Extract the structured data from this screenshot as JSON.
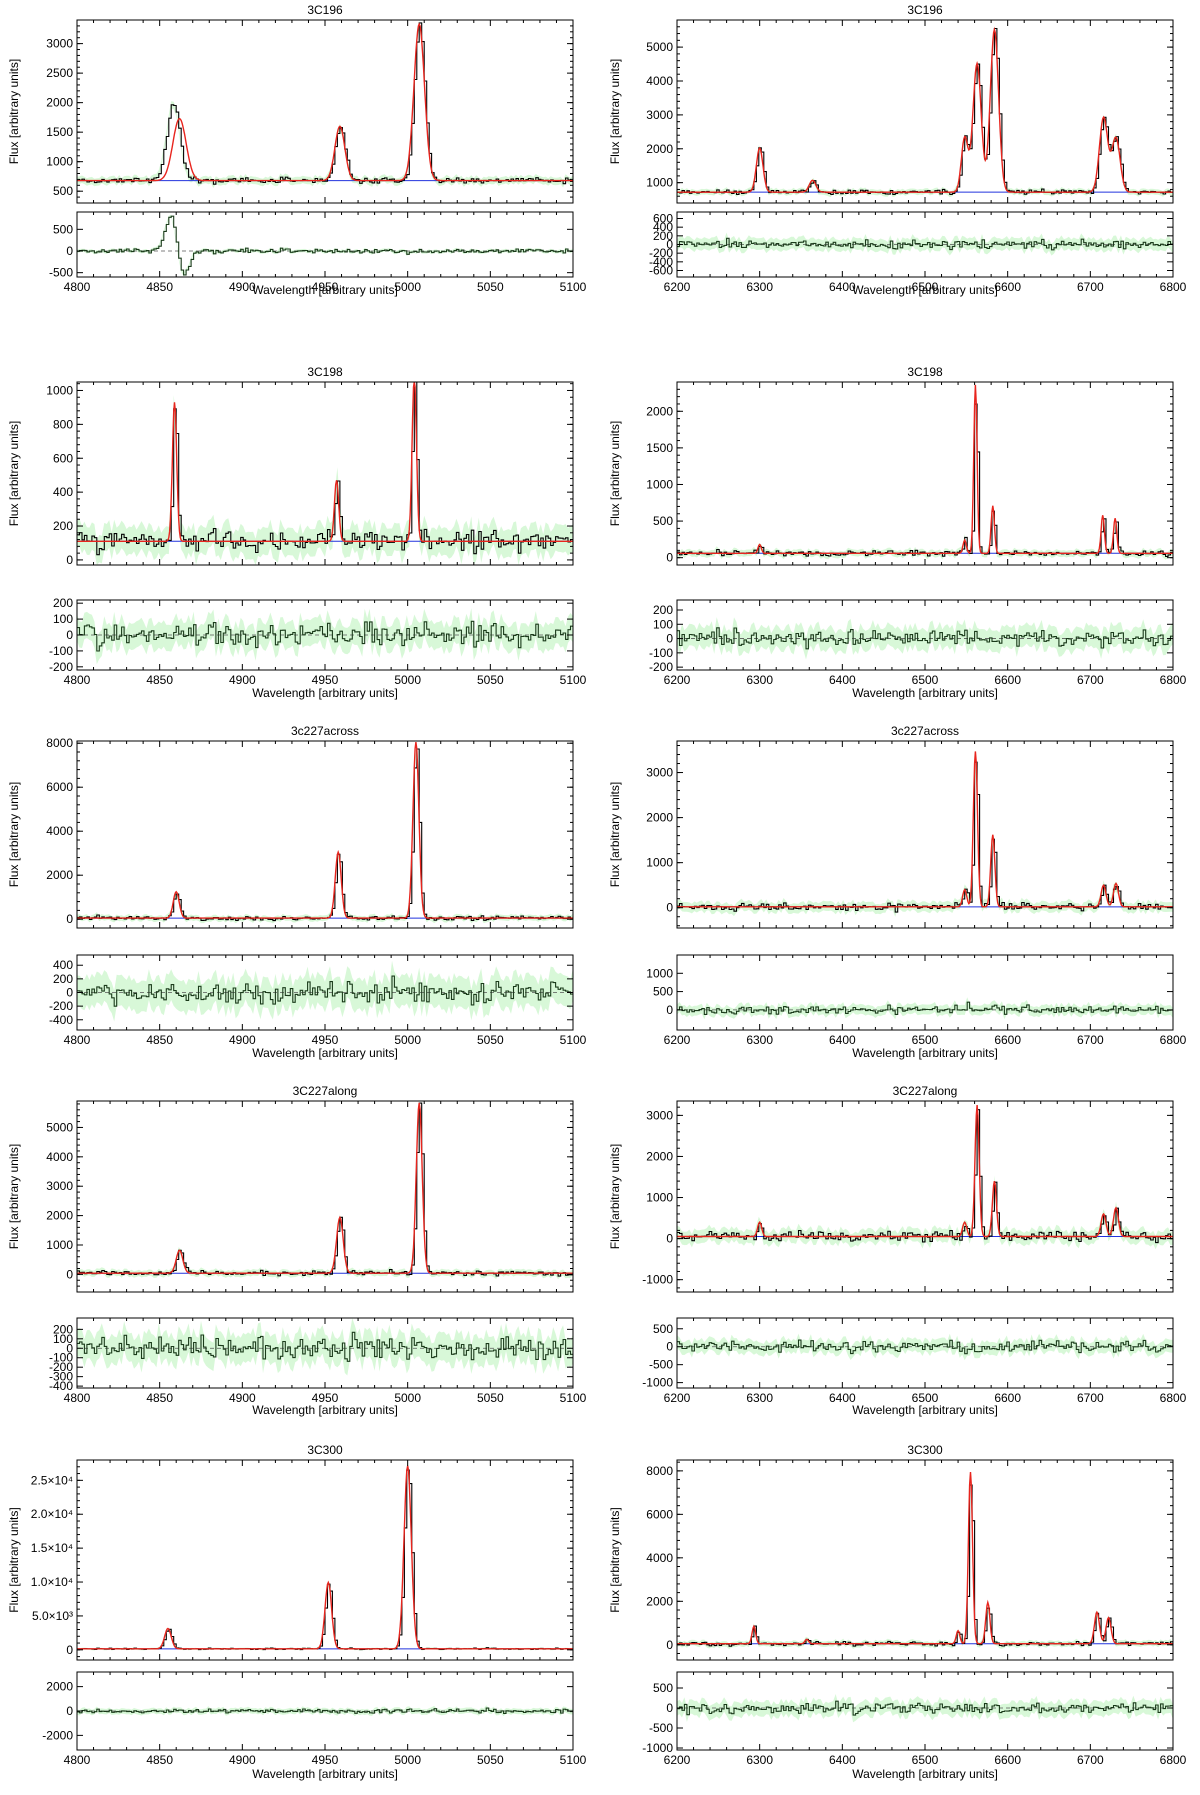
{
  "figure": {
    "xlabel": "Wavelength [arbitrary units]",
    "ylabel": "Flux [arbitrary units]"
  },
  "colors": {
    "data": "#000000",
    "model": "#e8251e",
    "component": "#2233dd",
    "errorband": "#a8f0a8",
    "residual": "#1a3a1a"
  },
  "chart_data": [
    {
      "type": "line",
      "title": "3C196",
      "xlim": [
        4800,
        5100
      ],
      "ylim": [
        300,
        3400
      ],
      "yticks": [
        500,
        1000,
        1500,
        2000,
        2500,
        3000
      ],
      "ytick_labels": [
        "500",
        "1000",
        "1500",
        "2000",
        "2500",
        "3000"
      ],
      "res_ylim": [
        -600,
        900
      ],
      "res_yticks": [
        -500,
        0,
        500
      ],
      "res_ytick_labels": [
        "-500",
        "0",
        "500"
      ],
      "xticks": [
        4800,
        4850,
        4900,
        4950,
        5000,
        5050,
        5100
      ],
      "continuum": 680,
      "noise": 35,
      "res_noise": 25,
      "lines": [
        {
          "center": 4858,
          "height": 1300,
          "sigma": 4,
          "model_center": 4862,
          "model_height": 1050
        },
        {
          "center": 4959,
          "height": 920,
          "sigma": 3
        },
        {
          "center": 5007,
          "height": 2650,
          "sigma": 3.2
        }
      ]
    },
    {
      "type": "line",
      "title": "3C196",
      "xlim": [
        6200,
        6800
      ],
      "ylim": [
        400,
        5800
      ],
      "yticks": [
        1000,
        2000,
        3000,
        4000,
        5000
      ],
      "ytick_labels": [
        "1000",
        "2000",
        "3000",
        "4000",
        "5000"
      ],
      "res_ylim": [
        -750,
        750
      ],
      "res_yticks": [
        -600,
        -400,
        -200,
        0,
        200,
        400,
        600
      ],
      "res_ytick_labels": [
        "-600",
        "-400",
        "-200",
        "0",
        "200",
        "400",
        "600"
      ],
      "xticks": [
        6200,
        6300,
        6400,
        6500,
        6600,
        6700,
        6800
      ],
      "continuum": 720,
      "noise": 45,
      "res_noise": 90,
      "lines": [
        {
          "center": 6300,
          "height": 1300,
          "sigma": 4
        },
        {
          "center": 6364,
          "height": 350,
          "sigma": 4
        },
        {
          "center": 6548,
          "height": 1600,
          "sigma": 4
        },
        {
          "center": 6563,
          "height": 3800,
          "sigma": 5
        },
        {
          "center": 6584,
          "height": 4800,
          "sigma": 5
        },
        {
          "center": 6716,
          "height": 2200,
          "sigma": 5
        },
        {
          "center": 6731,
          "height": 1600,
          "sigma": 5
        }
      ]
    },
    {
      "type": "line",
      "title": "3C198",
      "xlim": [
        4800,
        5100
      ],
      "ylim": [
        -30,
        1050
      ],
      "yticks": [
        0,
        200,
        400,
        600,
        800,
        1000
      ],
      "ytick_labels": [
        "0",
        "200",
        "400",
        "600",
        "800",
        "1000"
      ],
      "res_ylim": [
        -220,
        220
      ],
      "res_yticks": [
        -200,
        -100,
        0,
        100,
        200
      ],
      "res_ytick_labels": [
        "-200",
        "-100",
        "0",
        "100",
        "200"
      ],
      "xticks": [
        4800,
        4850,
        4900,
        4950,
        5000,
        5050,
        5100
      ],
      "continuum": 110,
      "noise": 45,
      "res_noise": 55,
      "lines": [
        {
          "center": 4859,
          "height": 820,
          "sigma": 1.3
        },
        {
          "center": 4957,
          "height": 360,
          "sigma": 1.3
        },
        {
          "center": 5004,
          "height": 980,
          "sigma": 1.3
        }
      ]
    },
    {
      "type": "line",
      "title": "3C198",
      "xlim": [
        6200,
        6800
      ],
      "ylim": [
        -100,
        2400
      ],
      "yticks": [
        0,
        500,
        1000,
        1500,
        2000
      ],
      "ytick_labels": [
        "0",
        "500",
        "1000",
        "1500",
        "2000"
      ],
      "res_ylim": [
        -220,
        270
      ],
      "res_yticks": [
        -200,
        -100,
        0,
        100,
        200
      ],
      "res_ytick_labels": [
        "-200",
        "-100",
        "0",
        "100",
        "200"
      ],
      "xticks": [
        6200,
        6300,
        6400,
        6500,
        6600,
        6700,
        6800
      ],
      "continuum": 60,
      "noise": 25,
      "res_noise": 50,
      "lines": [
        {
          "center": 6300,
          "height": 120,
          "sigma": 2
        },
        {
          "center": 6548,
          "height": 180,
          "sigma": 2
        },
        {
          "center": 6561,
          "height": 2300,
          "sigma": 2
        },
        {
          "center": 6582,
          "height": 650,
          "sigma": 2
        },
        {
          "center": 6715,
          "height": 520,
          "sigma": 2
        },
        {
          "center": 6730,
          "height": 480,
          "sigma": 2
        }
      ]
    },
    {
      "type": "line",
      "title": "3c227across",
      "xlim": [
        4800,
        5100
      ],
      "ylim": [
        -400,
        8100
      ],
      "yticks": [
        0,
        2000,
        4000,
        6000,
        8000
      ],
      "ytick_labels": [
        "0",
        "2000",
        "4000",
        "6000",
        "8000"
      ],
      "res_ylim": [
        -550,
        550
      ],
      "res_yticks": [
        -400,
        -200,
        0,
        200,
        400
      ],
      "res_ytick_labels": [
        "-400",
        "-200",
        "0",
        "200",
        "400"
      ],
      "xticks": [
        4800,
        4850,
        4900,
        4950,
        5000,
        5050,
        5100
      ],
      "continuum": 50,
      "noise": 70,
      "res_noise": 150,
      "lines": [
        {
          "center": 4860,
          "height": 1200,
          "sigma": 1.8
        },
        {
          "center": 4958,
          "height": 3000,
          "sigma": 1.8
        },
        {
          "center": 5005,
          "height": 8000,
          "sigma": 1.8
        }
      ]
    },
    {
      "type": "line",
      "title": "3c227across",
      "xlim": [
        6200,
        6800
      ],
      "ylim": [
        -450,
        3700
      ],
      "yticks": [
        0,
        1000,
        2000,
        3000
      ],
      "ytick_labels": [
        "0",
        "1000",
        "2000",
        "3000"
      ],
      "res_ylim": [
        -550,
        1500
      ],
      "res_yticks": [
        0,
        500,
        1000
      ],
      "res_ytick_labels": [
        "0",
        "500",
        "1000"
      ],
      "xticks": [
        6200,
        6300,
        6400,
        6500,
        6600,
        6700,
        6800
      ],
      "continuum": 20,
      "noise": 60,
      "res_noise": 90,
      "lines": [
        {
          "center": 6548,
          "height": 380,
          "sigma": 2.5
        },
        {
          "center": 6561,
          "height": 3450,
          "sigma": 2.5
        },
        {
          "center": 6582,
          "height": 1600,
          "sigma": 2.5
        },
        {
          "center": 6716,
          "height": 480,
          "sigma": 3
        },
        {
          "center": 6731,
          "height": 520,
          "sigma": 3
        }
      ]
    },
    {
      "type": "line",
      "title": "3C227along",
      "xlim": [
        4800,
        5100
      ],
      "ylim": [
        -600,
        5900
      ],
      "yticks": [
        0,
        1000,
        2000,
        3000,
        4000,
        5000
      ],
      "ytick_labels": [
        "0",
        "1000",
        "2000",
        "3000",
        "4000",
        "5000"
      ],
      "res_ylim": [
        -420,
        320
      ],
      "res_yticks": [
        -400,
        -300,
        -200,
        -100,
        0,
        100,
        200
      ],
      "res_ytick_labels": [
        "-400",
        "-300",
        "-200",
        "-100",
        "0",
        "100",
        "200"
      ],
      "xticks": [
        4800,
        4850,
        4900,
        4950,
        5000,
        5050,
        5100
      ],
      "continuum": 40,
      "noise": 60,
      "res_noise": 100,
      "lines": [
        {
          "center": 4862,
          "height": 780,
          "sigma": 2
        },
        {
          "center": 4959,
          "height": 1900,
          "sigma": 2
        },
        {
          "center": 5007,
          "height": 5800,
          "sigma": 1.8
        }
      ]
    },
    {
      "type": "line",
      "title": "3C227along",
      "xlim": [
        6200,
        6800
      ],
      "ylim": [
        -1300,
        3350
      ],
      "yticks": [
        -1000,
        0,
        1000,
        2000,
        3000
      ],
      "ytick_labels": [
        "-1000",
        "0",
        "1000",
        "2000",
        "3000"
      ],
      "res_ylim": [
        -1150,
        800
      ],
      "res_yticks": [
        -1000,
        -500,
        0,
        500
      ],
      "res_ytick_labels": [
        "-1000",
        "-500",
        "0",
        "500"
      ],
      "xticks": [
        6200,
        6300,
        6400,
        6500,
        6600,
        6700,
        6800
      ],
      "continuum": 50,
      "noise": 90,
      "res_noise": 120,
      "lines": [
        {
          "center": 6300,
          "height": 350,
          "sigma": 2.5
        },
        {
          "center": 6548,
          "height": 350,
          "sigma": 2.5
        },
        {
          "center": 6563,
          "height": 3200,
          "sigma": 2.5
        },
        {
          "center": 6584,
          "height": 1350,
          "sigma": 2.5
        },
        {
          "center": 6716,
          "height": 550,
          "sigma": 3
        },
        {
          "center": 6731,
          "height": 700,
          "sigma": 3
        }
      ]
    },
    {
      "type": "line",
      "title": "3C300",
      "xlim": [
        4800,
        5100
      ],
      "ylim": [
        -1500,
        28000
      ],
      "yticks": [
        0,
        5000,
        10000,
        15000,
        20000,
        25000
      ],
      "ytick_labels": [
        "0",
        "5.0×10³",
        "1.0×10⁴",
        "1.5×10⁴",
        "2.0×10⁴",
        "2.5×10⁴"
      ],
      "res_ylim": [
        -3200,
        3200
      ],
      "res_yticks": [
        -2000,
        0,
        2000
      ],
      "res_ytick_labels": [
        "-2000",
        "0",
        "2000"
      ],
      "xticks": [
        4800,
        4850,
        4900,
        4950,
        5000,
        5050,
        5100
      ],
      "continuum": 150,
      "noise": 80,
      "res_noise": 150,
      "lines": [
        {
          "center": 4855,
          "height": 3000,
          "sigma": 2
        },
        {
          "center": 4952,
          "height": 9800,
          "sigma": 2
        },
        {
          "center": 5000,
          "height": 27000,
          "sigma": 2.2
        }
      ]
    },
    {
      "type": "line",
      "title": "3C300",
      "xlim": [
        6200,
        6800
      ],
      "ylim": [
        -700,
        8500
      ],
      "yticks": [
        0,
        2000,
        4000,
        6000,
        8000
      ],
      "ytick_labels": [
        "0",
        "2000",
        "4000",
        "6000",
        "8000"
      ],
      "res_ylim": [
        -1050,
        900
      ],
      "res_yticks": [
        -1000,
        -500,
        0,
        500
      ],
      "res_ytick_labels": [
        "-1000",
        "-500",
        "0",
        "500"
      ],
      "xticks": [
        6200,
        6300,
        6400,
        6500,
        6600,
        6700,
        6800
      ],
      "continuum": 50,
      "noise": 70,
      "res_noise": 120,
      "lines": [
        {
          "center": 6293,
          "height": 800,
          "sigma": 2.2
        },
        {
          "center": 6357,
          "height": 200,
          "sigma": 2.2
        },
        {
          "center": 6540,
          "height": 600,
          "sigma": 2.2
        },
        {
          "center": 6555,
          "height": 7900,
          "sigma": 2.5
        },
        {
          "center": 6576,
          "height": 1900,
          "sigma": 2.5
        },
        {
          "center": 6708,
          "height": 1450,
          "sigma": 3
        },
        {
          "center": 6722,
          "height": 1200,
          "sigma": 3
        }
      ]
    }
  ]
}
